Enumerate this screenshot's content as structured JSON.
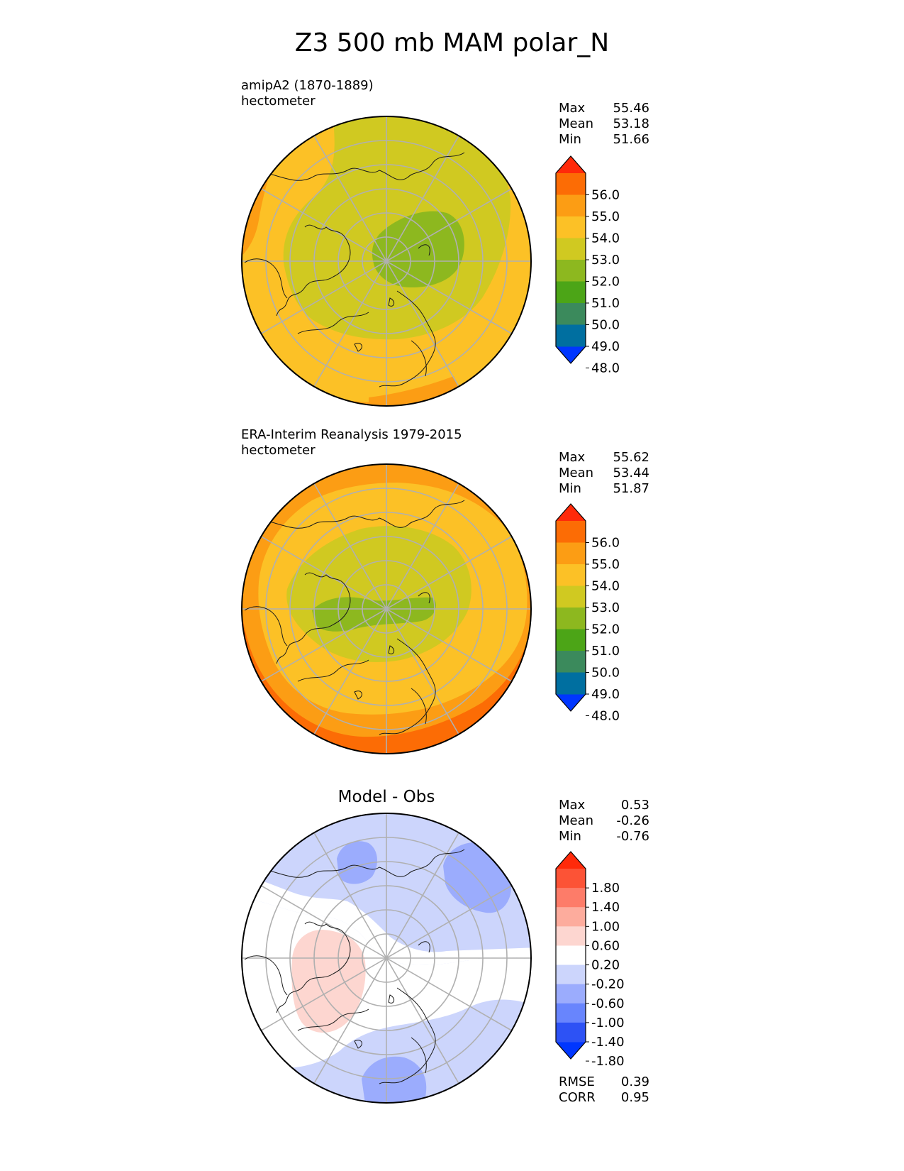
{
  "title": "Z3 500 mb MAM polar_N",
  "panels": [
    {
      "name": "model",
      "label_line1": "amipA2 (1870-1889)",
      "label_line2": "hectometer",
      "stats": {
        "max_label": "Max",
        "max": "55.46",
        "mean_label": "Mean",
        "mean": "53.18",
        "min_label": "Min",
        "min": "51.66"
      },
      "colorbar_ticks": [
        "56.0",
        "55.0",
        "54.0",
        "53.0",
        "52.0",
        "51.0",
        "50.0",
        "49.0",
        "48.0"
      ]
    },
    {
      "name": "obs",
      "label_line1": "ERA-Interim Reanalysis 1979-2015",
      "label_line2": "hectometer",
      "stats": {
        "max_label": "Max",
        "max": "55.62",
        "mean_label": "Mean",
        "mean": "53.44",
        "min_label": "Min",
        "min": "51.87"
      },
      "colorbar_ticks": [
        "56.0",
        "55.0",
        "54.0",
        "53.0",
        "52.0",
        "51.0",
        "50.0",
        "49.0",
        "48.0"
      ]
    },
    {
      "name": "diff",
      "center_title": "Model - Obs",
      "stats": {
        "max_label": "Max",
        "max": "0.53",
        "mean_label": "Mean",
        "mean": "-0.26",
        "min_label": "Min",
        "min": "-0.76"
      },
      "colorbar_ticks": [
        "1.80",
        "1.40",
        "1.00",
        "0.60",
        "0.20",
        "-0.20",
        "-0.60",
        "-1.00",
        "-1.40",
        "-1.80"
      ],
      "metrics": {
        "rmse_label": "RMSE",
        "rmse": "0.39",
        "corr_label": "CORR",
        "corr": "0.95"
      }
    }
  ],
  "colors": {
    "field_scale": [
      "#0036ff",
      "#006fa0",
      "#3b8a5c",
      "#4ca517",
      "#8db81f",
      "#d0c921",
      "#fcc126",
      "#fc9d14",
      "#fc6c05",
      "#ff2a0a"
    ],
    "diff_scale": [
      "#0036ff",
      "#2d52f5",
      "#6885fd",
      "#9bacfd",
      "#ccd5fc",
      "#ffffff",
      "#fdd6d0",
      "#fdac9d",
      "#fd7c69",
      "#fc5336",
      "#ff2a0a"
    ]
  }
}
